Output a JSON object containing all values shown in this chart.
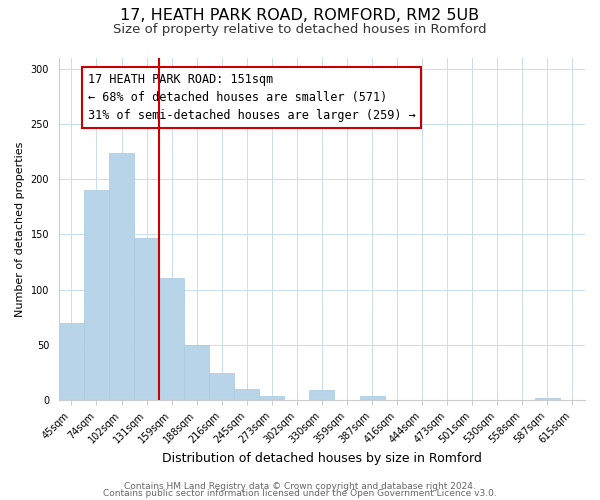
{
  "title": "17, HEATH PARK ROAD, ROMFORD, RM2 5UB",
  "subtitle": "Size of property relative to detached houses in Romford",
  "xlabel": "Distribution of detached houses by size in Romford",
  "ylabel": "Number of detached properties",
  "bins": [
    "45sqm",
    "74sqm",
    "102sqm",
    "131sqm",
    "159sqm",
    "188sqm",
    "216sqm",
    "245sqm",
    "273sqm",
    "302sqm",
    "330sqm",
    "359sqm",
    "387sqm",
    "416sqm",
    "444sqm",
    "473sqm",
    "501sqm",
    "530sqm",
    "558sqm",
    "587sqm",
    "615sqm"
  ],
  "values": [
    70,
    190,
    224,
    147,
    111,
    50,
    25,
    10,
    4,
    0,
    9,
    0,
    4,
    0,
    0,
    0,
    0,
    0,
    0,
    2,
    0
  ],
  "bar_color": "#b8d4e8",
  "bar_edge_color": "#aac8e0",
  "property_line_color": "#cc0000",
  "property_line_index": 3.5,
  "annotation_title": "17 HEATH PARK ROAD: 151sqm",
  "annotation_line1": "← 68% of detached houses are smaller (571)",
  "annotation_line2": "31% of semi-detached houses are larger (259) →",
  "box_edge_color": "#cc0000",
  "ylim": [
    0,
    310
  ],
  "yticks": [
    0,
    50,
    100,
    150,
    200,
    250,
    300
  ],
  "footer1": "Contains HM Land Registry data © Crown copyright and database right 2024.",
  "footer2": "Contains public sector information licensed under the Open Government Licence v3.0.",
  "title_fontsize": 11.5,
  "subtitle_fontsize": 9.5,
  "xlabel_fontsize": 9,
  "ylabel_fontsize": 8,
  "tick_fontsize": 7,
  "annotation_fontsize": 8.5,
  "footer_fontsize": 6.5,
  "grid_color": "#c8dff0"
}
